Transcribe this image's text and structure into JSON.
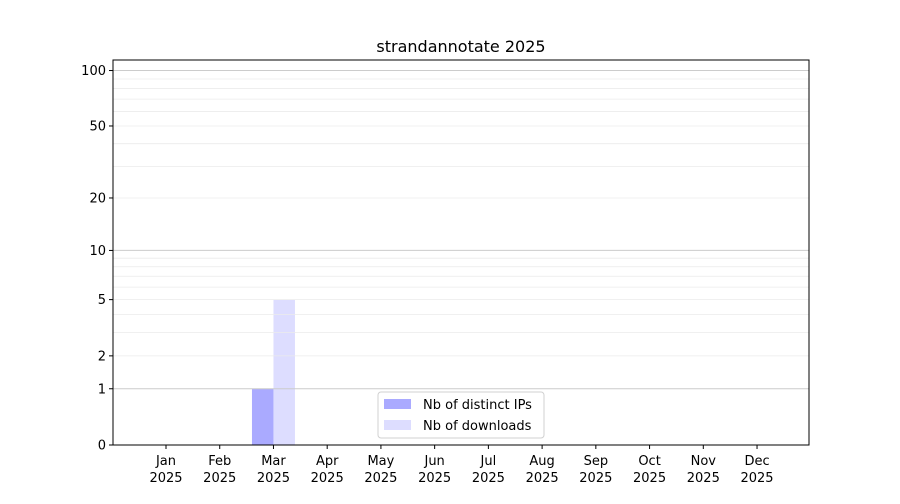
{
  "chart_data": {
    "type": "bar",
    "title": "strandannotate 2025",
    "xlabel": "",
    "ylabel": "",
    "yscale": "log(1+y)",
    "ylim": [
      0,
      114
    ],
    "yticks": [
      0,
      1,
      2,
      5,
      10,
      20,
      50,
      100
    ],
    "ytick_labels": [
      "0",
      "1",
      "2",
      "5",
      "10",
      "20",
      "50",
      "100"
    ],
    "grid": "horizontal, major and minor",
    "categories": [
      [
        "Jan",
        "2025"
      ],
      [
        "Feb",
        "2025"
      ],
      [
        "Mar",
        "2025"
      ],
      [
        "Apr",
        "2025"
      ],
      [
        "May",
        "2025"
      ],
      [
        "Jun",
        "2025"
      ],
      [
        "Jul",
        "2025"
      ],
      [
        "Aug",
        "2025"
      ],
      [
        "Sep",
        "2025"
      ],
      [
        "Oct",
        "2025"
      ],
      [
        "Nov",
        "2025"
      ],
      [
        "Dec",
        "2025"
      ]
    ],
    "series": [
      {
        "name": "Nb of distinct IPs",
        "color": "#aaaaff",
        "values": [
          0,
          0,
          1,
          0,
          0,
          0,
          0,
          0,
          0,
          0,
          0,
          0
        ]
      },
      {
        "name": "Nb of downloads",
        "color": "#ddddff",
        "values": [
          0,
          0,
          5,
          0,
          0,
          0,
          0,
          0,
          0,
          0,
          0,
          0
        ]
      }
    ],
    "legend_position": "bottom-center"
  }
}
